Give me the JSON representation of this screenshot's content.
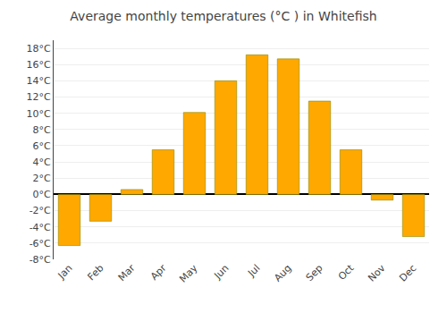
{
  "chart_data": {
    "type": "bar",
    "title": "Average monthly temperatures (°C ) in Whitefish",
    "categories": [
      "Jan",
      "Feb",
      "Mar",
      "Apr",
      "May",
      "Jun",
      "Jul",
      "Aug",
      "Sep",
      "Oct",
      "Nov",
      "Dec"
    ],
    "values": [
      -6.3,
      -3.3,
      0.6,
      5.5,
      10.1,
      14.0,
      17.2,
      16.7,
      11.5,
      5.5,
      -0.7,
      -5.2
    ],
    "color": "#FFA800",
    "ylim": [
      -8,
      19
    ],
    "yticks": [
      {
        "value": -8,
        "label": "-8°C"
      },
      {
        "value": -6,
        "label": "-6°C"
      },
      {
        "value": -4,
        "label": "-4°C"
      },
      {
        "value": -2,
        "label": "-2°C"
      },
      {
        "value": 0,
        "label": "0°C"
      },
      {
        "value": 2,
        "label": "2°C"
      },
      {
        "value": 4,
        "label": "4°C"
      },
      {
        "value": 6,
        "label": "6°C"
      },
      {
        "value": 8,
        "label": "8°C"
      },
      {
        "value": 10,
        "label": "10°C"
      },
      {
        "value": 12,
        "label": "12°C"
      },
      {
        "value": 14,
        "label": "14°C"
      },
      {
        "value": 16,
        "label": "16°C"
      },
      {
        "value": 18,
        "label": "18°C"
      }
    ],
    "grid": true
  }
}
